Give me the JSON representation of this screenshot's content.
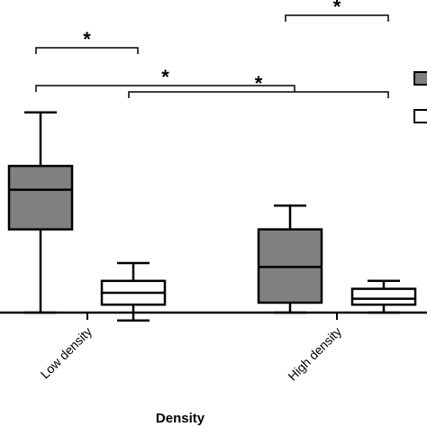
{
  "chart_data": {
    "type": "box",
    "title": "",
    "xlabel": "Density",
    "ylabel": "",
    "categories": [
      "Low density",
      "High density"
    ],
    "series": [
      {
        "color": "#808080",
        "boxes": [
          {
            "min": 0,
            "q1": 42,
            "median": 62,
            "q3": 74,
            "max": 101
          },
          {
            "min": 0,
            "q1": 5,
            "median": 23,
            "q3": 42,
            "max": 54
          }
        ]
      },
      {
        "color": "#ffffff",
        "boxes": [
          {
            "min": -4,
            "q1": 4,
            "median": 10,
            "q3": 16,
            "max": 25
          },
          {
            "min": 0,
            "q1": 4,
            "median": 7,
            "q3": 12,
            "max": 16
          }
        ]
      }
    ],
    "significance": [
      {
        "from": [
          0,
          0
        ],
        "to": [
          0,
          1
        ],
        "label": "*"
      },
      {
        "from": [
          0,
          0
        ],
        "to": [
          1,
          0
        ],
        "label": "*"
      },
      {
        "from": [
          0,
          1
        ],
        "to": [
          1,
          1
        ],
        "label": "*"
      },
      {
        "from": [
          1,
          0
        ],
        "to": [
          1,
          1
        ],
        "label": "*"
      }
    ],
    "legend": "top-right"
  }
}
